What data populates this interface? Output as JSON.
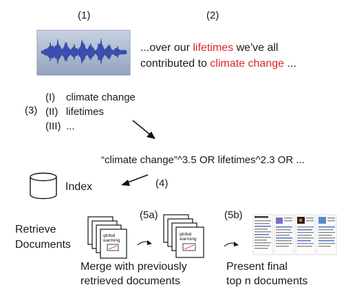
{
  "steps": {
    "s1": "(1)",
    "s2": "(2)",
    "s3": "(3)",
    "s4": "(4)",
    "s5a": "(5a)",
    "s5b": "(5b)"
  },
  "transcript": {
    "line1_pre": "...over our ",
    "line1_kw": "lifetimes",
    "line1_post": " we've all",
    "line2_pre": "contributed to ",
    "line2_kw": "climate change",
    "line2_post": " ..."
  },
  "keyphrases": [
    {
      "num": "(I)",
      "text": "climate change"
    },
    {
      "num": "(II)",
      "text": "lifetimes"
    },
    {
      "num": "(III)",
      "text": "..."
    }
  ],
  "query": "“climate change”^3.5 OR lifetimes^2.3 OR  ...",
  "index_label": "Index",
  "retrieve_label": [
    "Retrieve",
    "Documents"
  ],
  "doc_card_label": [
    "global",
    "warming"
  ],
  "merge_label": [
    "Merge with previously",
    "retrieved documents"
  ],
  "present_label": [
    "Present final",
    "top n documents"
  ],
  "colors": {
    "keyword": "#d9262a",
    "waveform": "#3a4fb0",
    "waveform_bg": "#a9b8d0"
  }
}
